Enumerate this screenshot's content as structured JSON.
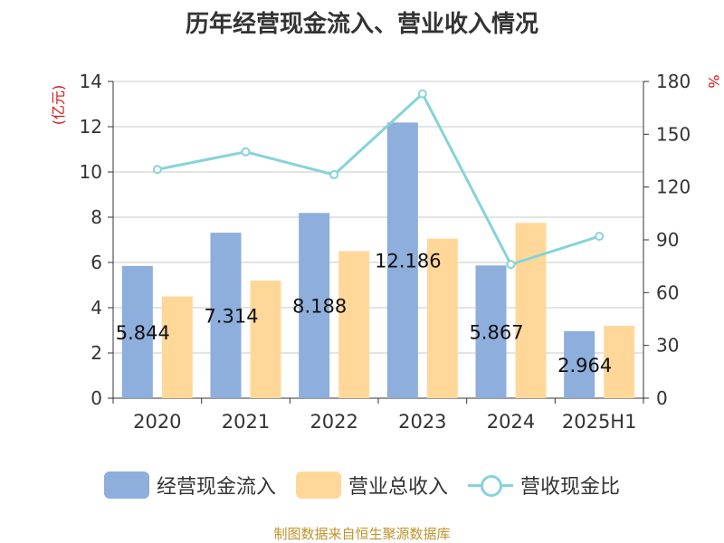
{
  "chart_data": {
    "type": "bar",
    "title": "历年经营现金流入、营业收入情况",
    "categories": [
      "2020",
      "2021",
      "2022",
      "2023",
      "2024",
      "2025H1"
    ],
    "series": [
      {
        "name": "经营现金流入",
        "kind": "bar",
        "axis": "left",
        "color": "#8eaedb",
        "values": [
          5.844,
          7.314,
          8.188,
          12.186,
          5.867,
          2.964
        ],
        "labels": [
          "5.844",
          "7.314",
          "8.188",
          "12.186",
          "5.867",
          "2.964"
        ]
      },
      {
        "name": "营业总收入",
        "kind": "bar",
        "axis": "left",
        "color": "#ffd899",
        "values": [
          4.5,
          5.2,
          6.5,
          7.05,
          7.75,
          3.2
        ]
      },
      {
        "name": "营收现金比",
        "kind": "line",
        "axis": "right",
        "color": "#86d3d8",
        "values": [
          130,
          140,
          127,
          173,
          76,
          92
        ]
      }
    ],
    "ylabel_left": "(亿元)",
    "ylabel_right": "%",
    "ylim_left": [
      0,
      14
    ],
    "yticks_left": [
      0,
      2,
      4,
      6,
      8,
      10,
      12,
      14
    ],
    "ylim_right": [
      0,
      180
    ],
    "yticks_right": [
      0,
      30,
      60,
      90,
      120,
      150,
      180
    ],
    "grid": true,
    "legend_position": "bottom"
  },
  "footer": "制图数据来自恒生聚源数据库"
}
